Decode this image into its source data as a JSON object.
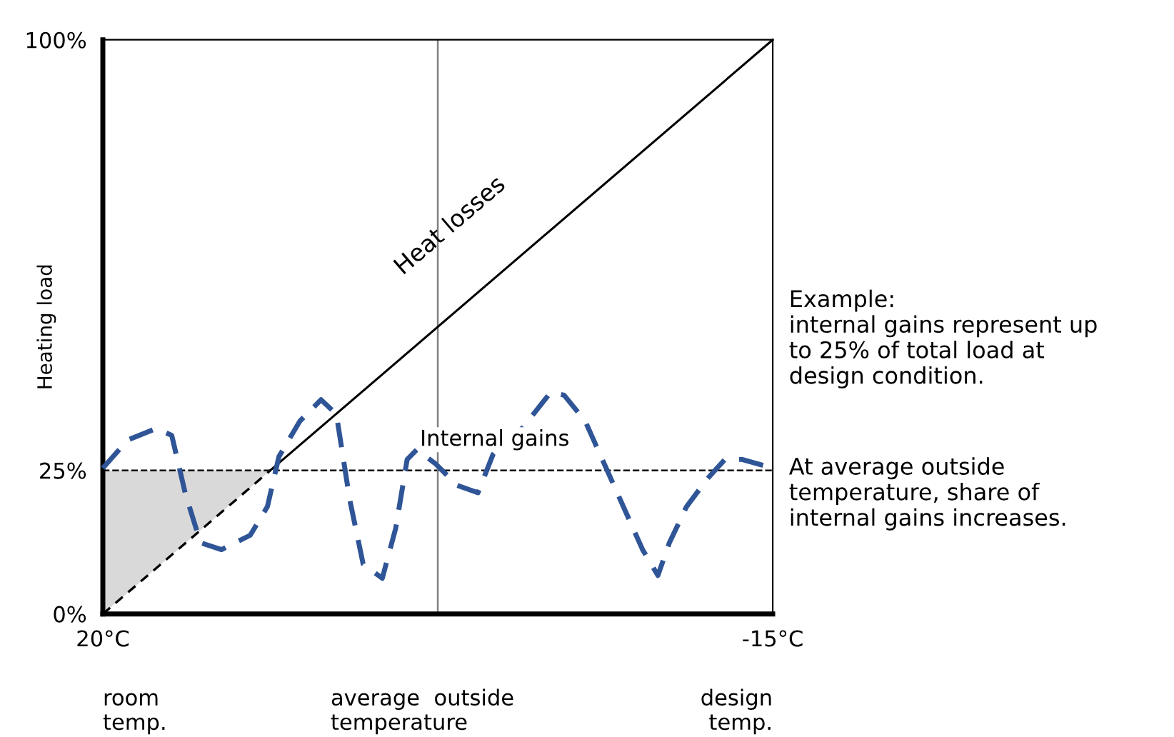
{
  "chart_data": {
    "type": "line",
    "ylabel": "Heating load",
    "xlim": [
      20,
      -15
    ],
    "ylim": [
      0,
      100
    ],
    "xticks": [
      {
        "value": 20,
        "label": "20°C"
      },
      {
        "value": -15,
        "label": "-15°C"
      }
    ],
    "yticks": [
      {
        "value": 0,
        "label": "0%"
      },
      {
        "value": 25,
        "label": "25%"
      },
      {
        "value": 100,
        "label": "100%"
      }
    ],
    "grid": false,
    "series": [
      {
        "color": "#000000",
        "line_style": "dashed",
        "x": [
          20,
          11.25
        ],
        "values": [
          0,
          25
        ],
        "lower": [
          0,
          25
        ],
        "upper": [
          25,
          25
        ]
      },
      {
        "color": "#000000",
        "line_style": "solid",
        "x": [
          11.25,
          -15
        ],
        "values": [
          25,
          100
        ]
      },
      {
        "color": "#2f5597",
        "line_style": "dashed",
        "x": [
          20,
          18.7,
          17.2,
          16.4,
          15.7,
          14.9,
          13.8,
          12.3,
          11.4,
          10.8,
          9.7,
          8.6,
          7.8,
          7.1,
          6.4,
          5.4,
          4.7,
          4.1,
          3.6,
          2.6,
          1.5,
          0.4,
          -0.4,
          -1.9,
          -3.4,
          -4.1,
          -5.2,
          -6.7,
          -8.2,
          -9.0,
          -9.6,
          -10.5,
          -11.6,
          -12.5,
          -13.4,
          -15
        ],
        "values": [
          25.4,
          30.3,
          32.3,
          31.1,
          21.1,
          12.4,
          11.2,
          13.7,
          18.7,
          27.4,
          33.6,
          37.3,
          34.8,
          19.9,
          8.7,
          6.2,
          14.9,
          26.9,
          28.6,
          26.1,
          22.4,
          21.1,
          27.9,
          32.3,
          38.6,
          38.1,
          33.6,
          22.4,
          11.2,
          6.7,
          12.4,
          18.7,
          23.6,
          26.9,
          26.9,
          25.4
        ]
      }
    ],
    "ref_lines": [
      {
        "axis": "y",
        "value": 25,
        "color": "#000000",
        "line_style": "dashed"
      },
      {
        "axis": "x",
        "value": 2.5,
        "color": "#808080",
        "line_style": "solid"
      }
    ],
    "annotations": [
      "Heat losses",
      "Internal gains",
      "room\ntemp.",
      "average  outside\ntemperature",
      "design\ntemp.",
      "Example:\ninternal gains represent up\nto 25% of total load at\ndesign condition.",
      "At average outside\ntemperature, share of\ninternal gains increases."
    ]
  }
}
